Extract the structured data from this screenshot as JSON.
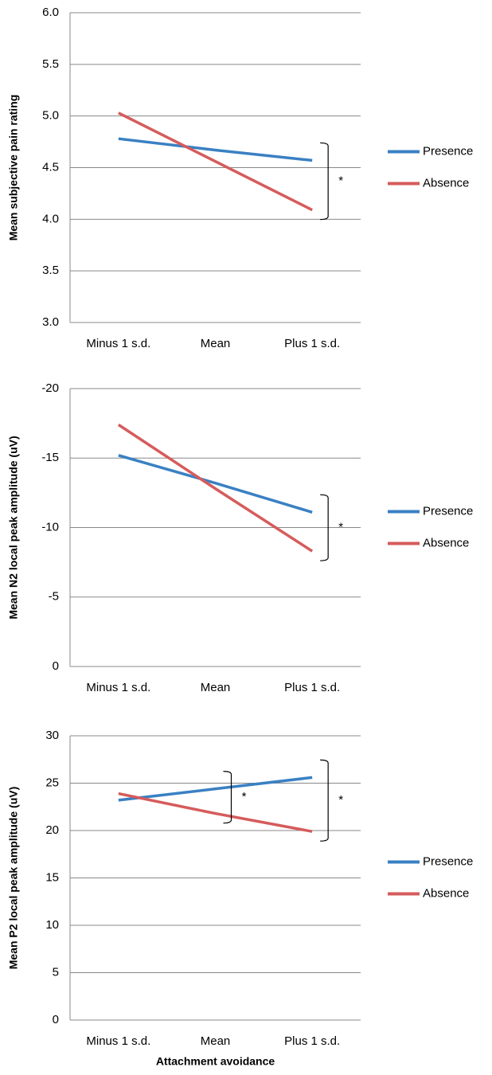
{
  "chart_data": [
    {
      "type": "line",
      "categories": [
        "Minus 1 s.d.",
        "Mean",
        "Plus 1 s.d."
      ],
      "y_label": "Mean subjective pain rating",
      "ylim": [
        3,
        6
      ],
      "yticks": [
        {
          "value": 3,
          "label": "3.0"
        },
        {
          "value": 3.5,
          "label": "3.5"
        },
        {
          "value": 4,
          "label": "4.0"
        },
        {
          "value": 4.5,
          "label": "4.5"
        },
        {
          "value": 5,
          "label": "5.0"
        },
        {
          "value": 5.5,
          "label": "5.5"
        },
        {
          "value": 6,
          "label": "6.0"
        }
      ],
      "grid": true,
      "series": [
        {
          "name": "Presence",
          "color": "#3a80c3",
          "values": [
            4.78,
            4.67,
            4.57
          ]
        },
        {
          "name": "Absence",
          "color": "#d65b5b",
          "values": [
            5.03,
            4.56,
            4.09
          ]
        }
      ],
      "annotations": [
        "*"
      ]
    },
    {
      "type": "line",
      "categories": [
        "Minus 1 s.d.",
        "Mean",
        "Plus 1 s.d."
      ],
      "y_label": "Mean N2 local peak amplitude (uV)",
      "ylim": [
        0,
        -20
      ],
      "yticks": [
        0,
        -5,
        -10,
        -15,
        -20
      ],
      "grid": true,
      "series": [
        {
          "name": "Presence",
          "color": "#3a80c3",
          "values": [
            -15.2,
            -13.2,
            -11.1
          ]
        },
        {
          "name": "Absence",
          "color": "#d65b5b",
          "values": [
            -17.4,
            -12.8,
            -8.3
          ]
        }
      ],
      "annotations": [
        "*"
      ]
    },
    {
      "type": "line",
      "categories": [
        "Minus 1 s.d.",
        "Mean",
        "Plus 1 s.d."
      ],
      "y_label": "Mean P2 local peak amplitude (uV)",
      "x_label": "Attachment avoidance",
      "ylim": [
        0,
        30
      ],
      "yticks": [
        0,
        5,
        10,
        15,
        20,
        25,
        30
      ],
      "grid": true,
      "series": [
        {
          "name": "Presence",
          "color": "#3a80c3",
          "values": [
            23.2,
            24.4,
            25.6
          ]
        },
        {
          "name": "Absence",
          "color": "#d65b5b",
          "values": [
            23.9,
            21.8,
            19.9
          ]
        }
      ],
      "annotations": [
        "*",
        "*"
      ]
    }
  ]
}
